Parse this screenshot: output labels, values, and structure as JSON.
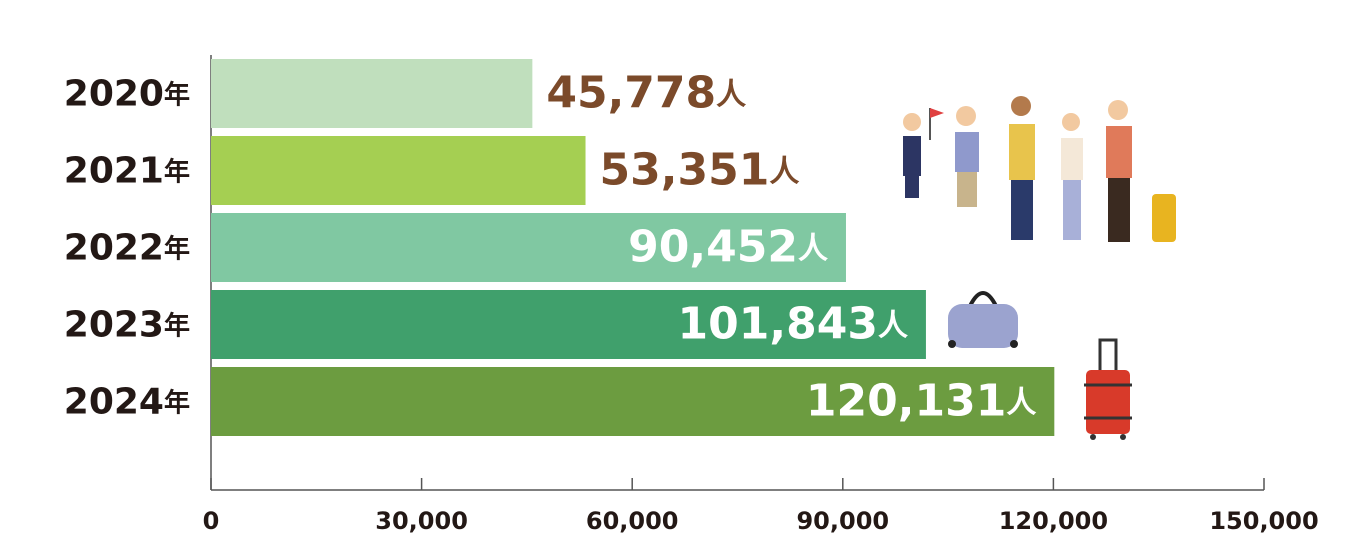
{
  "chart_data": {
    "type": "bar",
    "orientation": "horizontal",
    "categories": [
      "2020年",
      "2021年",
      "2022年",
      "2023年",
      "2024年"
    ],
    "values": [
      45778,
      53351,
      90452,
      101843,
      120131
    ],
    "value_labels": [
      "45,778人",
      "53,351人",
      "90,452人",
      "101,843人",
      "120,131人"
    ],
    "value_label_positions": [
      "outside",
      "outside",
      "inside",
      "inside",
      "inside"
    ],
    "colors": [
      "#c0dfbd",
      "#a5cf52",
      "#80c8a2",
      "#40a06c",
      "#6c9c40"
    ],
    "xlim": [
      0,
      150000
    ],
    "xticks": [
      0,
      {
        "value": 30000,
        "label": "30,000"
      },
      {
        "value": 60000,
        "label": "60,000"
      },
      {
        "value": 90000,
        "label": "90,000"
      },
      {
        "value": 120000,
        "label": "120,000"
      },
      {
        "value": 150000,
        "label": "150,000"
      }
    ]
  }
}
